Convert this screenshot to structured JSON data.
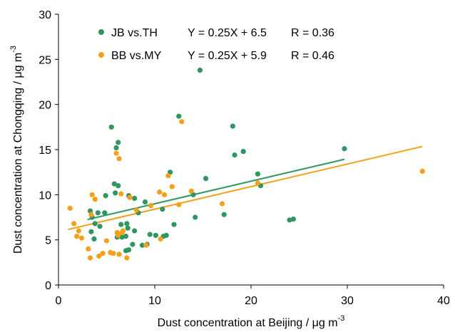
{
  "chart_data": {
    "type": "scatter",
    "xlabel": "Dust concentration at Beijing / μg m",
    "xlabel_sup": "-3",
    "ylabel": "Dust concentration at Chongqing  / μg m",
    "ylabel_sup": "-3",
    "xlim": [
      0,
      40
    ],
    "ylim": [
      0,
      30
    ],
    "xticks": [
      "0",
      "10",
      "20",
      "30",
      "40"
    ],
    "yticks": [
      "0",
      "5",
      "10",
      "15",
      "20",
      "25",
      "30"
    ],
    "grid": false,
    "legend_position": "top-left",
    "series": [
      {
        "name": "JB vs.TH",
        "color": "#2e9660",
        "equation": "Y = 0.25X + 6.5",
        "r": "R = 0.36",
        "fit": {
          "slope": 0.25,
          "intercept": 6.5,
          "x_range": [
            3,
            29.7
          ]
        },
        "points": [
          [
            5.5,
            17.5
          ],
          [
            6.2,
            15.8
          ],
          [
            6.0,
            15.2
          ],
          [
            5.8,
            11.2
          ],
          [
            6.2,
            11.0
          ],
          [
            5.9,
            10.2
          ],
          [
            4.9,
            9.9
          ],
          [
            7.3,
            9.9
          ],
          [
            7.9,
            9.6
          ],
          [
            3.3,
            8.2
          ],
          [
            4.1,
            8.0
          ],
          [
            4.8,
            8.0
          ],
          [
            3.5,
            7.5
          ],
          [
            3.8,
            6.8
          ],
          [
            6.5,
            6.7
          ],
          [
            7.1,
            6.8
          ],
          [
            7.2,
            6.3
          ],
          [
            7.9,
            6.0
          ],
          [
            3.4,
            5.9
          ],
          [
            6.1,
            5.3
          ],
          [
            7.0,
            5.4
          ],
          [
            6.6,
            5.3
          ],
          [
            3.7,
            5.1
          ],
          [
            4.3,
            6.5
          ],
          [
            7.7,
            4.5
          ],
          [
            8.7,
            4.4
          ],
          [
            9.2,
            4.5
          ],
          [
            7.0,
            3.8
          ],
          [
            7.3,
            3.9
          ],
          [
            8.3,
            8.0
          ],
          [
            9.0,
            9.2
          ],
          [
            9.5,
            5.6
          ],
          [
            10.1,
            5.5
          ],
          [
            10.9,
            5.4
          ],
          [
            11.2,
            5.5
          ],
          [
            10.8,
            8.4
          ],
          [
            11.6,
            12.5
          ],
          [
            12.0,
            6.7
          ],
          [
            12.5,
            18.7
          ],
          [
            14.7,
            23.8
          ],
          [
            14.0,
            10.0
          ],
          [
            14.2,
            7.5
          ],
          [
            15.3,
            11.8
          ],
          [
            17.2,
            7.8
          ],
          [
            18.1,
            17.6
          ],
          [
            18.3,
            14.4
          ],
          [
            19.2,
            14.8
          ],
          [
            20.7,
            12.3
          ],
          [
            21.0,
            11.0
          ],
          [
            24.0,
            7.2
          ],
          [
            24.4,
            7.3
          ],
          [
            29.7,
            15.1
          ]
        ]
      },
      {
        "name": "BB vs.MY",
        "color": "#f5a01a",
        "equation": "Y = 0.25X + 5.9",
        "r": "R = 0.46",
        "fit": {
          "slope": 0.25,
          "intercept": 5.9,
          "x_range": [
            1,
            37.8
          ]
        },
        "points": [
          [
            1.2,
            8.5
          ],
          [
            1.6,
            6.8
          ],
          [
            1.9,
            5.4
          ],
          [
            2.1,
            6.0
          ],
          [
            2.4,
            5.2
          ],
          [
            3.1,
            4.0
          ],
          [
            3.3,
            3.0
          ],
          [
            3.4,
            7.8
          ],
          [
            3.5,
            10.0
          ],
          [
            3.8,
            9.5
          ],
          [
            4.2,
            3.2
          ],
          [
            4.6,
            3.5
          ],
          [
            5.0,
            4.9
          ],
          [
            5.4,
            3.6
          ],
          [
            5.7,
            3.5
          ],
          [
            6.0,
            14.6
          ],
          [
            6.3,
            14.0
          ],
          [
            6.2,
            5.5
          ],
          [
            6.1,
            5.8
          ],
          [
            6.6,
            5.8
          ],
          [
            6.7,
            6.0
          ],
          [
            6.5,
            10.1
          ],
          [
            6.3,
            3.4
          ],
          [
            7.1,
            3.0
          ],
          [
            7.4,
            9.7
          ],
          [
            8.1,
            8.3
          ],
          [
            9.1,
            4.4
          ],
          [
            9.6,
            8.8
          ],
          [
            10.5,
            10.3
          ],
          [
            11.0,
            10.0
          ],
          [
            10.6,
            5.1
          ],
          [
            11.4,
            12.1
          ],
          [
            11.8,
            10.9
          ],
          [
            12.8,
            18.1
          ],
          [
            12.5,
            8.9
          ],
          [
            13.8,
            10.4
          ],
          [
            17.0,
            9.0
          ],
          [
            20.7,
            11.3
          ],
          [
            37.8,
            12.6
          ]
        ]
      }
    ]
  }
}
